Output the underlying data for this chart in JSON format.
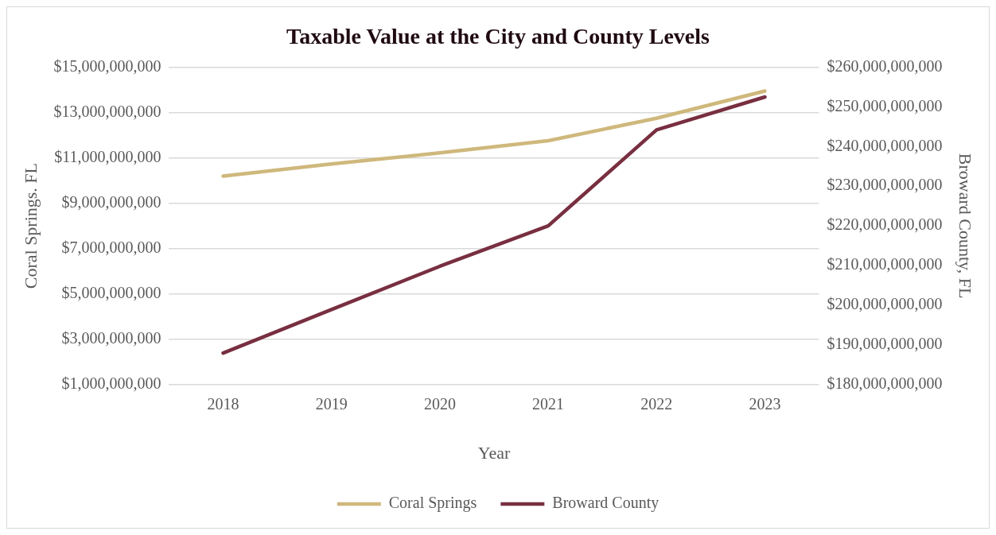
{
  "chart_data": {
    "type": "line",
    "title": "Taxable Value at the City and County Levels",
    "xlabel": "Year",
    "ylabel": "Coral Springs. FL",
    "y2label": "Broward County, FL",
    "categories": [
      "2018",
      "2019",
      "2020",
      "2021",
      "2022",
      "2023"
    ],
    "series": [
      {
        "name": "Coral Springs",
        "color": "#cfb87c",
        "values": [
          10200000000,
          10730000000,
          11220000000,
          11760000000,
          12750000000,
          13950000000
        ]
      },
      {
        "name": "Broward County",
        "color": "#782f40",
        "axis": "y2",
        "values": [
          187900000000,
          198900000000,
          209800000000,
          220000000000,
          244200000000,
          252500000000
        ]
      }
    ],
    "ylim": [
      1000000000,
      15000000000
    ],
    "yticks": [
      {
        "value": 1000000000,
        "label": "$1,000,000,000"
      },
      {
        "value": 3000000000,
        "label": "$3,000,000,000"
      },
      {
        "value": 5000000000,
        "label": "$5,000,000,000"
      },
      {
        "value": 7000000000,
        "label": "$7,000,000,000"
      },
      {
        "value": 9000000000,
        "label": "$9,000,000,000"
      },
      {
        "value": 11000000000,
        "label": "$11,000,000,000"
      },
      {
        "value": 13000000000,
        "label": "$13,000,000,000"
      },
      {
        "value": 15000000000,
        "label": "$15,000,000,000"
      }
    ],
    "y2lim": [
      180000000000,
      260000000000
    ],
    "y2ticks": [
      {
        "value": 180000000000,
        "label": "$180,000,000,000"
      },
      {
        "value": 190000000000,
        "label": "$190,000,000,000"
      },
      {
        "value": 200000000000,
        "label": "$200,000,000,000"
      },
      {
        "value": 210000000000,
        "label": "$210,000,000,000"
      },
      {
        "value": 220000000000,
        "label": "$220,000,000,000"
      },
      {
        "value": 230000000000,
        "label": "$230,000,000,000"
      },
      {
        "value": 240000000000,
        "label": "$240,000,000,000"
      },
      {
        "value": 250000000000,
        "label": "$250,000,000,000"
      },
      {
        "value": 260000000000,
        "label": "$260,000,000,000"
      }
    ],
    "grid": "y",
    "legend": "bottom",
    "marker": "none",
    "line_style": "solid"
  }
}
